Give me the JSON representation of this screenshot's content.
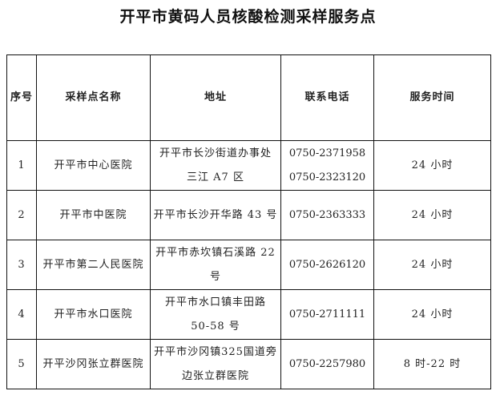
{
  "title": "开平市黄码人员核酸检测采样服务点",
  "headers": [
    "序号",
    "采样点名称",
    "地址",
    "联系电话",
    "服务时间"
  ],
  "rows": [
    {
      "no": "1",
      "name": "开平市中心医院",
      "address": [
        "开平市长沙街道办事处",
        "三江 A7 区"
      ],
      "phones": [
        "0750-2371958",
        "0750-2323120"
      ],
      "hours": "24 小时"
    },
    {
      "no": "2",
      "name": "开平市中医院",
      "address": [
        "开平市长沙开华路 43 号"
      ],
      "phones": [
        "0750-2363333"
      ],
      "hours": "24 小时"
    },
    {
      "no": "3",
      "name": "开平市第二人民医院",
      "address": [
        "开平市赤坎镇石溪路 22",
        "号"
      ],
      "phones": [
        "0750-2626120"
      ],
      "hours": "24 小时"
    },
    {
      "no": "4",
      "name": "开平市水口医院",
      "address": [
        "开平市水口镇丰田路",
        "50-58 号"
      ],
      "phones": [
        "0750-2711111"
      ],
      "hours": "24 小时"
    },
    {
      "no": "5",
      "name": "开平沙冈张立群医院",
      "address": [
        "开平市沙冈镇325国道旁",
        "边张立群医院"
      ],
      "phones": [
        "0750-2257980"
      ],
      "hours": "8 时-22 时"
    }
  ]
}
